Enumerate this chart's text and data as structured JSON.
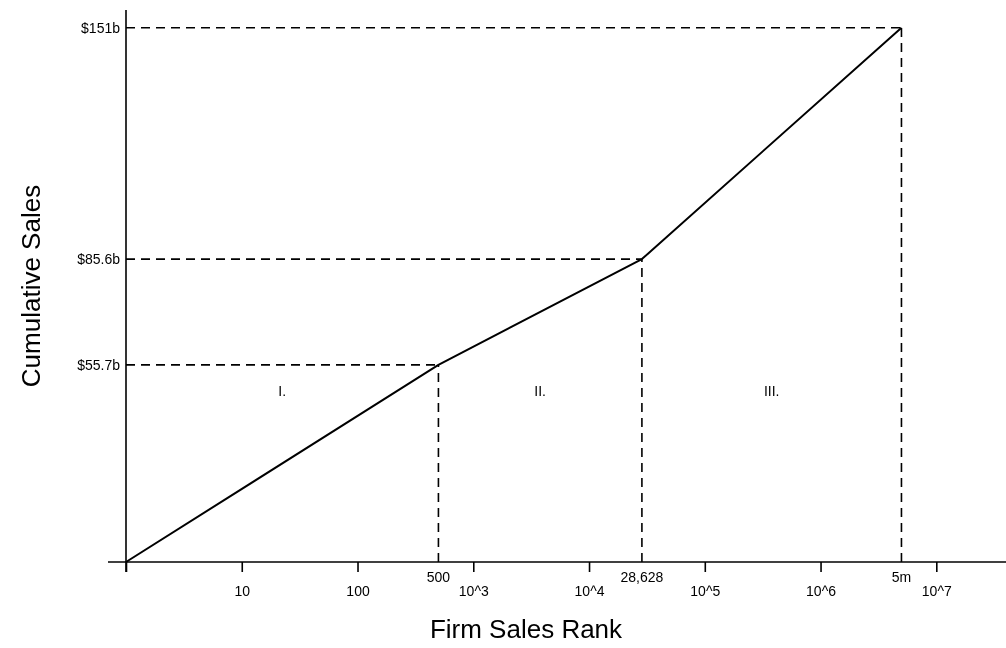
{
  "chart_data": {
    "type": "line",
    "xlabel": "Firm Sales Rank",
    "ylabel": "Cumulative Sales",
    "log": "x",
    "x": [
      1,
      500,
      28628,
      5000000
    ],
    "series": [
      {
        "color": "#000000",
        "values": [
          0,
          55.7,
          85.6,
          151
        ]
      }
    ],
    "xlim": [
      1,
      40000000
    ],
    "ylim": [
      0,
      156
    ],
    "xticks": [
      {
        "value": 1,
        "label": null
      },
      10,
      100,
      {
        "value": 1000,
        "label": "10^3"
      },
      {
        "value": 10000,
        "label": "10^4"
      },
      {
        "value": 100000,
        "label": "10^5"
      },
      {
        "value": 1000000,
        "label": "10^6"
      },
      {
        "value": 10000000,
        "label": "10^7"
      }
    ],
    "yticks": [
      {
        "value": 55.7,
        "label": "$55.7b"
      },
      {
        "value": 85.6,
        "label": "$85.6b"
      },
      {
        "value": 151,
        "label": "$151b"
      }
    ],
    "ref_lines": [
      {
        "axis": "x",
        "value": 500,
        "label": "500",
        "line_style": "dashed"
      },
      {
        "axis": "x",
        "value": 28628,
        "label": "28,628",
        "line_style": "dashed"
      },
      {
        "axis": "x",
        "value": 5000000,
        "label": "5m",
        "line_style": "dashed"
      },
      {
        "axis": "y",
        "value": 55.7,
        "label": null,
        "line_style": "dashed"
      },
      {
        "axis": "y",
        "value": 85.6,
        "label": null,
        "line_style": "dashed"
      },
      {
        "axis": "y",
        "value": 151,
        "label": null,
        "line_style": "dashed"
      }
    ],
    "annotations": [
      "I.",
      "II.",
      "III."
    ],
    "grid": false,
    "marker": "none",
    "line_style": "solid"
  }
}
